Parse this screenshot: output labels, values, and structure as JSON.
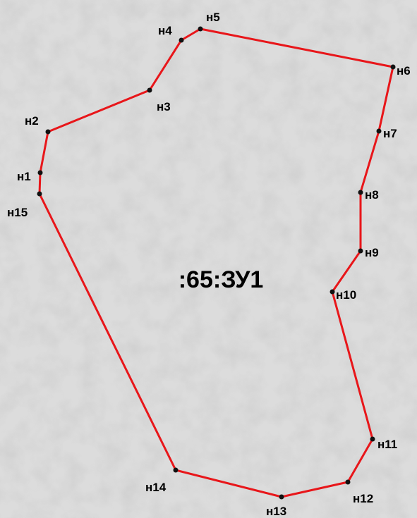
{
  "parcel": {
    "label": ":65:ЗУ1"
  },
  "points": [
    "н1",
    "н2",
    "н3",
    "н4",
    "н5",
    "н6",
    "н7",
    "н8",
    "н9",
    "н10",
    "н11",
    "н12",
    "н13",
    "н14",
    "н15"
  ]
}
